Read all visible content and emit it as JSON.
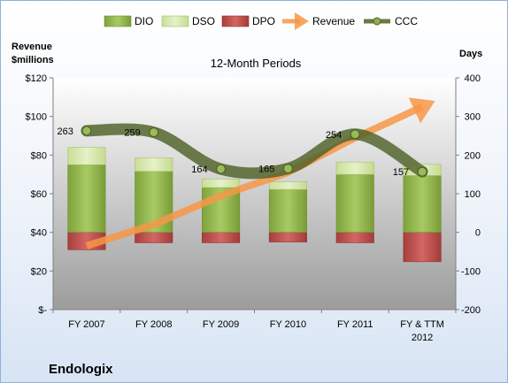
{
  "chart_data": {
    "type": "bar",
    "company": "Endologix",
    "title": "12-Month Periods",
    "y_left_label_line1": "Revenue",
    "y_left_label_line2": "$millions",
    "y_right_label": "Days",
    "categories": [
      "FY 2007",
      "FY 2008",
      "FY 2009",
      "FY 2010",
      "FY 2011",
      "FY & TTM 2012"
    ],
    "category_lines": [
      [
        "FY 2007"
      ],
      [
        "FY 2008"
      ],
      [
        "FY 2009"
      ],
      [
        "FY 2010"
      ],
      [
        "FY 2011"
      ],
      [
        "FY & TTM",
        "2012"
      ]
    ],
    "y_left_ticks": [
      "$-",
      "$20",
      "$40",
      "$60",
      "$80",
      "$100",
      "$120"
    ],
    "y_left_range": [
      0,
      120
    ],
    "y_right_ticks": [
      "-200",
      "-100",
      "0",
      "100",
      "200",
      "300",
      "400"
    ],
    "y_right_range": [
      -200,
      400
    ],
    "series": [
      {
        "name": "DIO",
        "axis": "right",
        "kind": "stacked-bar",
        "color": "#8db34a",
        "values": [
          175,
          158,
          116,
          111,
          150,
          147
        ]
      },
      {
        "name": "DSO",
        "axis": "right",
        "kind": "stacked-bar",
        "color": "#d7e8b0",
        "values": [
          45,
          35,
          22,
          20,
          32,
          29
        ]
      },
      {
        "name": "DPO",
        "axis": "right",
        "kind": "negative-bar",
        "color": "#c0504d",
        "values": [
          -45,
          -27,
          -27,
          -25,
          -27,
          -76
        ]
      },
      {
        "name": "Revenue",
        "axis": "left",
        "kind": "arrow",
        "color": "#f79646",
        "values": [
          33,
          44,
          59,
          71,
          89,
          105
        ]
      },
      {
        "name": "CCC",
        "axis": "right",
        "kind": "line",
        "color": "#4f6228",
        "values": [
          263,
          259,
          164,
          165,
          254,
          157
        ]
      }
    ],
    "ccc_labels": [
      "263",
      "259",
      "164",
      "165",
      "254",
      "157"
    ],
    "legend": [
      "DIO",
      "DSO",
      "DPO",
      "Revenue",
      "CCC"
    ],
    "legend_position": "top",
    "grid": false
  }
}
